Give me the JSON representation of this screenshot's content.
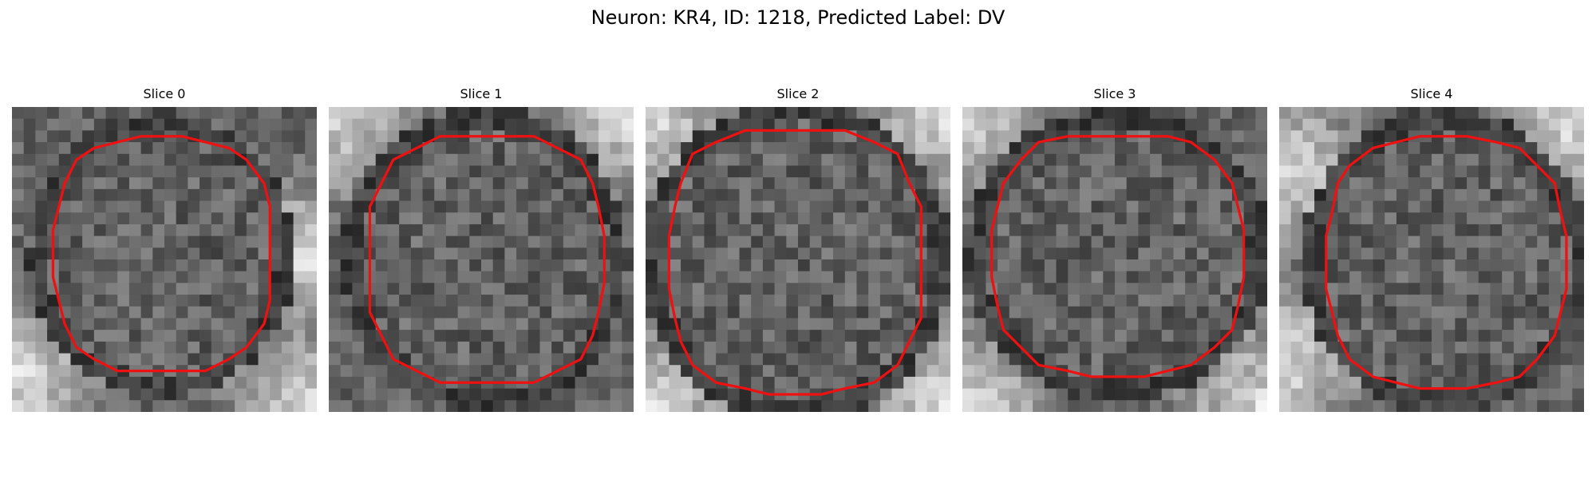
{
  "figure": {
    "title": "Neuron: KR4, ID: 1218, Predicted Label: DV"
  },
  "colors": {
    "contour": "#ee1111",
    "cell_dark": "#2a2a2a",
    "background_light": "#d8d8d8"
  },
  "panels": [
    {
      "title": "Slice 0"
    },
    {
      "title": "Slice 1"
    },
    {
      "title": "Slice 2"
    },
    {
      "title": "Slice 3"
    },
    {
      "title": "Slice 4"
    }
  ]
}
